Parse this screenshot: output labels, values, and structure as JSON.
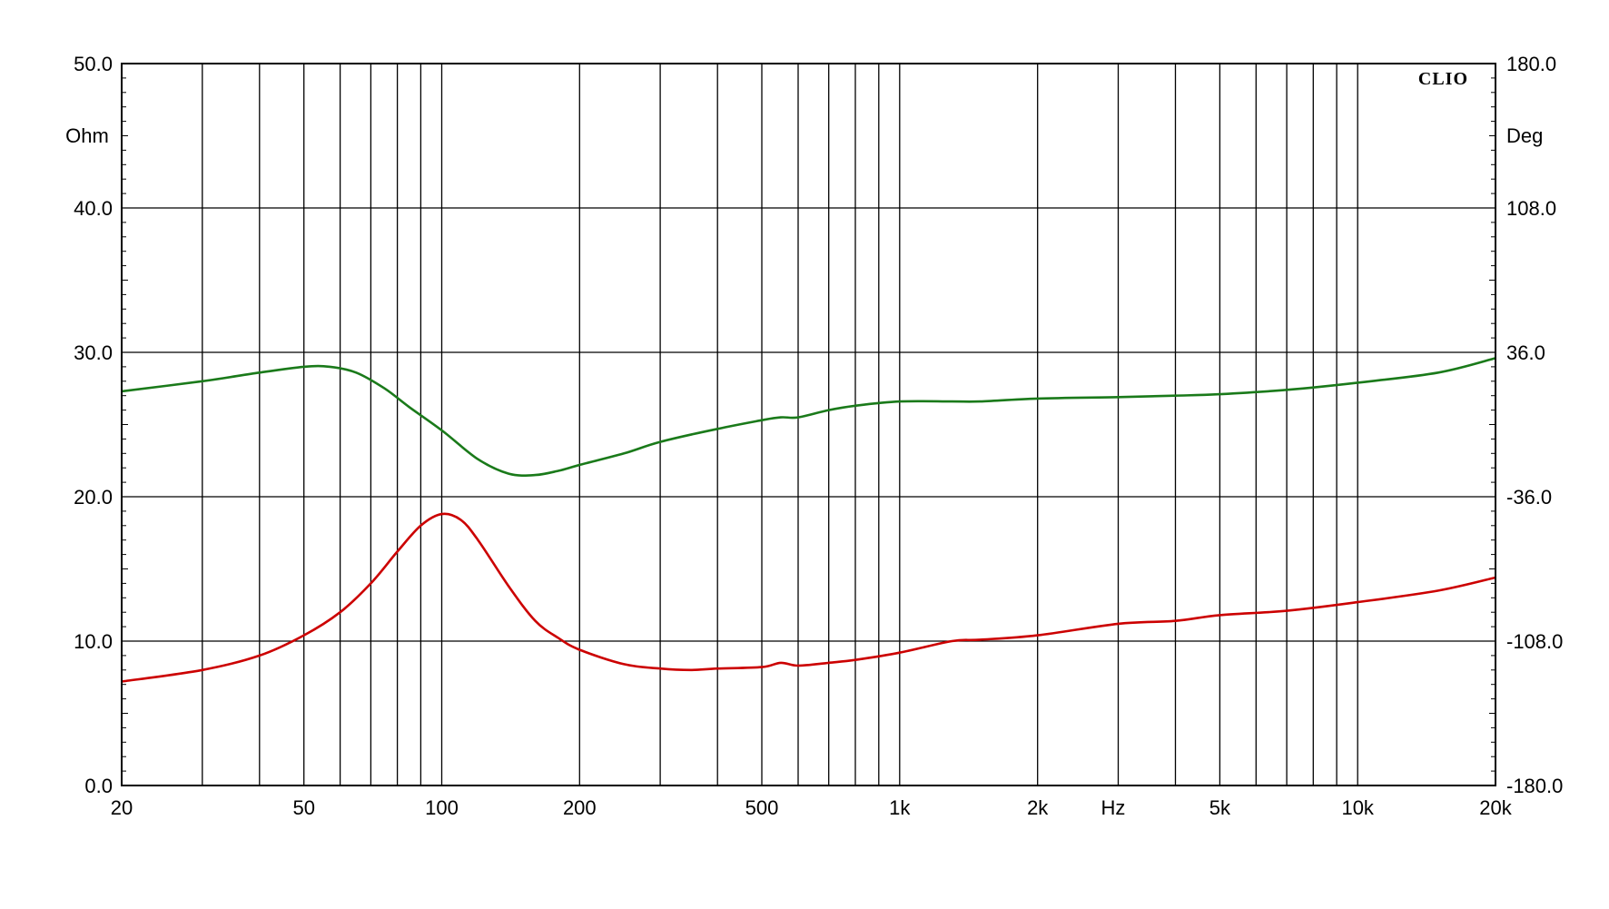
{
  "chart_data": {
    "type": "line",
    "brand": "CLIO",
    "x_scale": "log",
    "xlim": [
      20,
      20000
    ],
    "x_unit_label": "Hz",
    "x_tick_labels": [
      {
        "value": 20,
        "label": "20"
      },
      {
        "value": 50,
        "label": "50"
      },
      {
        "value": 100,
        "label": "100"
      },
      {
        "value": 200,
        "label": "200"
      },
      {
        "value": 500,
        "label": "500"
      },
      {
        "value": 1000,
        "label": "1k"
      },
      {
        "value": 2000,
        "label": "2k"
      },
      {
        "value": 5000,
        "label": "5k"
      },
      {
        "value": 10000,
        "label": "10k"
      },
      {
        "value": 20000,
        "label": "20k"
      }
    ],
    "x_gridlines": [
      20,
      30,
      40,
      50,
      60,
      70,
      80,
      90,
      100,
      200,
      300,
      400,
      500,
      600,
      700,
      800,
      900,
      1000,
      2000,
      3000,
      4000,
      5000,
      6000,
      7000,
      8000,
      9000,
      10000,
      20000
    ],
    "y_left": {
      "unit": "Ohm",
      "lim": [
        0,
        50
      ],
      "ticks": [
        "0.0",
        "10.0",
        "20.0",
        "30.0",
        "40.0",
        "50.0"
      ],
      "tick_values": [
        0,
        10,
        20,
        30,
        40,
        50
      ]
    },
    "y_right": {
      "unit": "Deg",
      "lim": [
        -180,
        180
      ],
      "ticks": [
        "-180.0",
        "-108.0",
        "-36.0",
        "36.0",
        "108.0",
        "180.0"
      ],
      "tick_values": [
        -180,
        -108,
        -36,
        36,
        108,
        180
      ]
    },
    "grid": true,
    "series": [
      {
        "color": "#cc0000",
        "axis": "left",
        "x": [
          20,
          30,
          40,
          50,
          60,
          70,
          80,
          90,
          100,
          110,
          120,
          140,
          160,
          180,
          200,
          250,
          300,
          350,
          400,
          500,
          550,
          600,
          700,
          800,
          1000,
          1300,
          1500,
          2000,
          3000,
          4000,
          5000,
          7000,
          10000,
          15000,
          20000
        ],
        "y": [
          7.2,
          8.0,
          9.0,
          10.4,
          12.0,
          14.0,
          16.2,
          18.0,
          18.8,
          18.4,
          17.0,
          13.8,
          11.4,
          10.2,
          9.4,
          8.4,
          8.1,
          8.0,
          8.1,
          8.2,
          8.5,
          8.3,
          8.5,
          8.7,
          9.2,
          10.0,
          10.1,
          10.4,
          11.2,
          11.4,
          11.8,
          12.1,
          12.7,
          13.5,
          14.4
        ]
      },
      {
        "color": "#1a7a1a",
        "axis": "left",
        "x": [
          20,
          30,
          40,
          50,
          57,
          65,
          75,
          85,
          100,
          120,
          140,
          160,
          180,
          200,
          250,
          300,
          400,
          500,
          550,
          600,
          700,
          800,
          1000,
          1300,
          1500,
          2000,
          3000,
          4000,
          5000,
          7000,
          10000,
          15000,
          20000
        ],
        "y": [
          27.3,
          28.0,
          28.6,
          29.0,
          29.0,
          28.6,
          27.5,
          26.2,
          24.6,
          22.6,
          21.6,
          21.5,
          21.8,
          22.2,
          23.0,
          23.8,
          24.7,
          25.3,
          25.5,
          25.5,
          26.0,
          26.3,
          26.6,
          26.6,
          26.6,
          26.8,
          26.9,
          27.0,
          27.1,
          27.4,
          27.9,
          28.6,
          29.6
        ]
      }
    ]
  }
}
